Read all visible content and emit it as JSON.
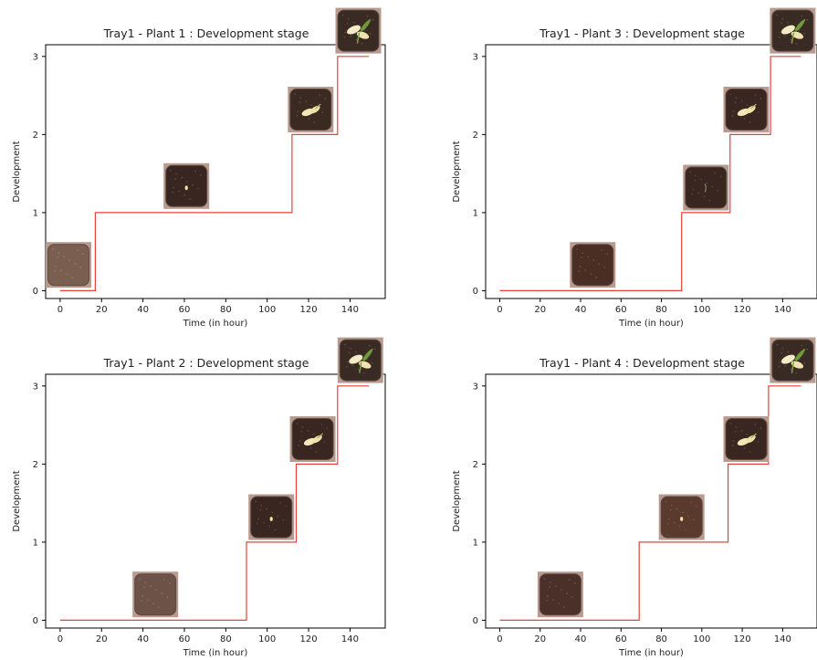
{
  "chart_data": [
    {
      "type": "line",
      "title": "Tray1 - Plant 1 : Development stage",
      "xlabel": "Time (in hour)",
      "ylabel": "Development",
      "xlim": [
        -7,
        157
      ],
      "ylim": [
        -0.1,
        3.15
      ],
      "xticks": [
        0,
        20,
        40,
        60,
        80,
        100,
        120,
        140
      ],
      "yticks": [
        0,
        1,
        2,
        3
      ],
      "steps": [
        [
          0,
          0
        ],
        [
          17,
          0
        ],
        [
          17,
          1
        ],
        [
          112,
          1
        ],
        [
          112,
          2
        ],
        [
          134,
          2
        ],
        [
          134,
          3
        ],
        [
          149,
          3
        ]
      ],
      "thumbnails": [
        {
          "stage": 0,
          "x": 4,
          "y": 0.33,
          "soil": "#7a5f50",
          "sprout": "none"
        },
        {
          "stage": 1,
          "x": 61,
          "y": 1.34,
          "soil": "#3a2620",
          "sprout": "dot"
        },
        {
          "stage": 2,
          "x": 121,
          "y": 2.32,
          "soil": "#3b2a22",
          "sprout": "cotyledon"
        },
        {
          "stage": 3,
          "x": 144,
          "y": 3.33,
          "soil": "#3a2a24",
          "sprout": "leaves"
        }
      ],
      "color": "#e8403a"
    },
    {
      "type": "line",
      "title": "Tray1 - Plant 3 : Development stage",
      "xlabel": "Time (in hour)",
      "ylabel": "Development",
      "xlim": [
        -7,
        157
      ],
      "ylim": [
        -0.1,
        3.15
      ],
      "xticks": [
        0,
        20,
        40,
        60,
        80,
        100,
        120,
        140
      ],
      "yticks": [
        0,
        1,
        2,
        3
      ],
      "steps": [
        [
          0,
          0
        ],
        [
          90,
          0
        ],
        [
          90,
          1
        ],
        [
          114,
          1
        ],
        [
          114,
          2
        ],
        [
          134,
          2
        ],
        [
          134,
          3
        ],
        [
          149,
          3
        ]
      ],
      "thumbnails": [
        {
          "stage": 0,
          "x": 46,
          "y": 0.33,
          "soil": "#4a2e24",
          "sprout": "none"
        },
        {
          "stage": 1,
          "x": 102,
          "y": 1.32,
          "soil": "#3a2620",
          "sprout": "thread"
        },
        {
          "stage": 2,
          "x": 122,
          "y": 2.32,
          "soil": "#3a2620",
          "sprout": "cotyledon"
        },
        {
          "stage": 3,
          "x": 145,
          "y": 3.33,
          "soil": "#3a2a24",
          "sprout": "leaves"
        }
      ],
      "color": "#e8403a"
    },
    {
      "type": "line",
      "title": "Tray1 - Plant 2 : Development stage",
      "xlabel": "Time (in hour)",
      "ylabel": "Development",
      "xlim": [
        -7,
        157
      ],
      "ylim": [
        -0.1,
        3.15
      ],
      "xticks": [
        0,
        20,
        40,
        60,
        80,
        100,
        120,
        140
      ],
      "yticks": [
        0,
        1,
        2,
        3
      ],
      "steps": [
        [
          0,
          0
        ],
        [
          90,
          0
        ],
        [
          90,
          1
        ],
        [
          114,
          1
        ],
        [
          114,
          2
        ],
        [
          134,
          2
        ],
        [
          134,
          3
        ],
        [
          149,
          3
        ]
      ],
      "thumbnails": [
        {
          "stage": 0,
          "x": 46,
          "y": 0.33,
          "soil": "#6d5347",
          "sprout": "none"
        },
        {
          "stage": 1,
          "x": 102,
          "y": 1.32,
          "soil": "#3a2620",
          "sprout": "dot"
        },
        {
          "stage": 2,
          "x": 122,
          "y": 2.32,
          "soil": "#3a2620",
          "sprout": "cotyledon"
        },
        {
          "stage": 3,
          "x": 145,
          "y": 3.33,
          "soil": "#3a2a24",
          "sprout": "leaves"
        }
      ],
      "color": "#e8403a"
    },
    {
      "type": "line",
      "title": "Tray1 - Plant 4 : Development stage",
      "xlabel": "Time (in hour)",
      "ylabel": "Development",
      "xlim": [
        -7,
        157
      ],
      "ylim": [
        -0.1,
        3.15
      ],
      "xticks": [
        0,
        20,
        40,
        60,
        80,
        100,
        120,
        140
      ],
      "yticks": [
        0,
        1,
        2,
        3
      ],
      "steps": [
        [
          0,
          0
        ],
        [
          69,
          0
        ],
        [
          69,
          1
        ],
        [
          113,
          1
        ],
        [
          113,
          2
        ],
        [
          133,
          2
        ],
        [
          133,
          3
        ],
        [
          149,
          3
        ]
      ],
      "thumbnails": [
        {
          "stage": 0,
          "x": 30,
          "y": 0.33,
          "soil": "#4a3028",
          "sprout": "none"
        },
        {
          "stage": 1,
          "x": 90,
          "y": 1.32,
          "soil": "#5a3a2c",
          "sprout": "dot"
        },
        {
          "stage": 2,
          "x": 122,
          "y": 2.32,
          "soil": "#3a2620",
          "sprout": "cotyledon"
        },
        {
          "stage": 3,
          "x": 145,
          "y": 3.33,
          "soil": "#3a2a24",
          "sprout": "leaves"
        }
      ],
      "color": "#e8403a"
    }
  ]
}
